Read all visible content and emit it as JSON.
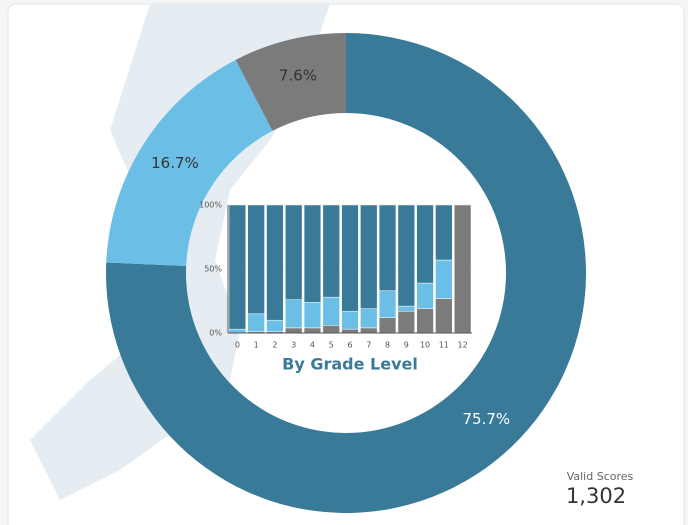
{
  "chart_data": [
    {
      "type": "donut",
      "values": [
        75.7,
        16.7,
        7.6
      ],
      "value_labels": [
        "75.7%",
        "16.7%",
        "7.6%"
      ],
      "colors": [
        "#3a7a99",
        "#6bbfe6",
        "#7b7b7b"
      ],
      "label_colors": [
        "#ffffff",
        "#333333",
        "#333333"
      ]
    },
    {
      "type": "stacked_bar",
      "xlabel": "By Grade Level",
      "categories": [
        "0",
        "1",
        "2",
        "3",
        "4",
        "5",
        "6",
        "7",
        "8",
        "9",
        "10",
        "11",
        "12"
      ],
      "series": [
        {
          "color": "#7b7b7b",
          "values": [
            0,
            1,
            1,
            4,
            4,
            6,
            3,
            4,
            12,
            17,
            19,
            27,
            100
          ]
        },
        {
          "color": "#6bbfe6",
          "values": [
            3,
            14,
            9,
            22,
            20,
            22,
            14,
            15,
            21,
            4,
            20,
            30,
            0
          ]
        },
        {
          "color": "#3a7a99",
          "values": [
            97,
            85,
            90,
            74,
            76,
            72,
            83,
            81,
            67,
            79,
            61,
            43,
            0
          ]
        }
      ],
      "ylim": [
        0,
        100
      ],
      "yticks": [
        {
          "value": 0,
          "label": "0%"
        },
        {
          "value": 50,
          "label": "50%"
        },
        {
          "value": 100,
          "label": "100%"
        }
      ]
    }
  ],
  "summary": {
    "label": "Valid Scores",
    "value": "1,302"
  }
}
